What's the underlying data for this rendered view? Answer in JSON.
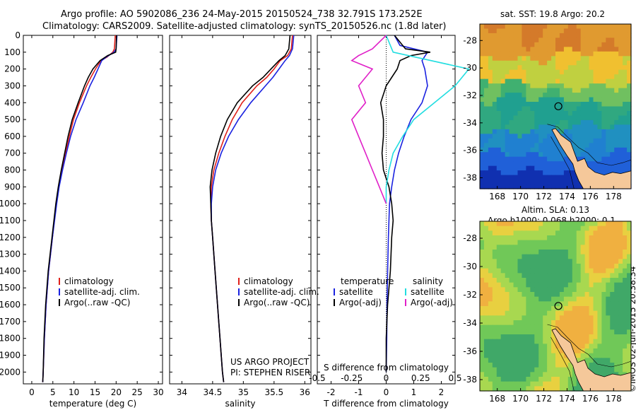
{
  "header": {
    "line1": "Argo profile: AO 5902086_236 24-May-2015 20150524_738 32.791S 173.252E",
    "line2": "Climatology: CARS2009. Satellite-adjusted climatology: synTS_20150526.nc (1.8d later)"
  },
  "side_stamp": "©IMOS 02-Jun-2015 20:38:34",
  "colors": {
    "climatology": "#e0201a",
    "satellite": "#1a22e0",
    "argo": "#000000",
    "cyan": "#22dde0",
    "magenta": "#e020c8"
  },
  "chart_data": [
    {
      "type": "line",
      "xlabel": "temperature (deg C)",
      "ylabel": "",
      "xlim": [
        -2,
        31
      ],
      "ylim": [
        2070,
        0
      ],
      "xticks": [
        "0",
        "5",
        "10",
        "15",
        "20",
        "25",
        "30"
      ],
      "yticks": [
        "0",
        "100",
        "200",
        "300",
        "400",
        "500",
        "600",
        "700",
        "800",
        "900",
        "1000",
        "1100",
        "1200",
        "1300",
        "1400",
        "1500",
        "1600",
        "1700",
        "1800",
        "1900",
        "2000"
      ],
      "legend": [
        "climatology",
        "satellite-adj. clim.",
        "Argo(..raw -QC)"
      ],
      "series": [
        {
          "name": "climatology",
          "color": "#e0201a",
          "depth": [
            0,
            80,
            100,
            130,
            150,
            200,
            250,
            300,
            400,
            500,
            600,
            700,
            800,
            900,
            1000,
            1200,
            1400,
            1600,
            1800,
            2000,
            2060
          ],
          "values": [
            19.8,
            19.6,
            19.2,
            17.8,
            16.4,
            15.1,
            14.0,
            13.0,
            11.3,
            9.9,
            8.9,
            8.0,
            7.2,
            6.4,
            5.8,
            4.9,
            4.0,
            3.4,
            3.0,
            2.7,
            2.6
          ]
        },
        {
          "name": "satellite-adj. clim.",
          "color": "#1a22e0",
          "depth": [
            0,
            80,
            100,
            130,
            150,
            200,
            250,
            300,
            400,
            500,
            600,
            700,
            800,
            900,
            1000,
            1200,
            1400,
            1600,
            1800,
            2000,
            2060
          ],
          "values": [
            20.2,
            20.0,
            19.5,
            17.6,
            16.6,
            15.7,
            14.8,
            13.8,
            12.2,
            10.5,
            9.2,
            8.2,
            7.3,
            6.5,
            5.9,
            4.9,
            4.0,
            3.4,
            3.0,
            2.7,
            2.6
          ]
        },
        {
          "name": "Argo(..raw -QC)",
          "color": "#000000",
          "depth": [
            0,
            80,
            100,
            120,
            150,
            200,
            250,
            300,
            400,
            500,
            600,
            700,
            800,
            900,
            1000,
            1200,
            1400,
            1600,
            1800,
            2000,
            2060
          ],
          "values": [
            20.1,
            20.0,
            19.9,
            18.0,
            16.2,
            14.5,
            13.4,
            12.5,
            11.0,
            9.6,
            8.6,
            7.8,
            7.0,
            6.3,
            5.7,
            4.8,
            3.9,
            3.3,
            2.9,
            2.7,
            2.6
          ]
        }
      ],
      "annotation": []
    },
    {
      "type": "line",
      "xlabel": "salinity",
      "xlim": [
        33.8,
        36.1
      ],
      "ylim": [
        2070,
        0
      ],
      "xticks": [
        "34",
        "34.5",
        "35",
        "35.5",
        "36"
      ],
      "legend": [
        "climatology",
        "satellite-adj. clim.",
        "Argo(..raw -QC)"
      ],
      "series": [
        {
          "name": "climatology",
          "color": "#e0201a",
          "depth": [
            0,
            80,
            120,
            150,
            200,
            250,
            300,
            400,
            500,
            600,
            700,
            800,
            900,
            1000,
            1100,
            1200,
            1400,
            1600,
            1800,
            2000,
            2060
          ],
          "values": [
            35.8,
            35.78,
            35.72,
            35.6,
            35.5,
            35.38,
            35.22,
            34.98,
            34.82,
            34.7,
            34.6,
            34.52,
            34.48,
            34.47,
            34.48,
            34.5,
            34.54,
            34.58,
            34.62,
            34.66,
            34.68
          ]
        },
        {
          "name": "satellite-adj. clim.",
          "color": "#1a22e0",
          "depth": [
            0,
            80,
            120,
            150,
            200,
            250,
            300,
            400,
            500,
            600,
            700,
            800,
            900,
            1000,
            1100,
            1200,
            1400,
            1600,
            1800,
            2000,
            2060
          ],
          "values": [
            35.82,
            35.8,
            35.75,
            35.68,
            35.58,
            35.48,
            35.36,
            35.12,
            34.92,
            34.76,
            34.64,
            34.55,
            34.5,
            34.48,
            34.48,
            34.5,
            34.54,
            34.58,
            34.62,
            34.66,
            34.68
          ]
        },
        {
          "name": "Argo(..raw -QC)",
          "color": "#000000",
          "depth": [
            0,
            80,
            120,
            150,
            200,
            250,
            300,
            400,
            500,
            600,
            700,
            800,
            900,
            1000,
            1100,
            1200,
            1400,
            1600,
            1800,
            2000,
            2060
          ],
          "values": [
            35.76,
            35.74,
            35.68,
            35.58,
            35.45,
            35.32,
            35.15,
            34.9,
            34.74,
            34.63,
            34.55,
            34.49,
            34.46,
            34.47,
            34.48,
            34.5,
            34.54,
            34.58,
            34.62,
            34.66,
            34.68
          ]
        }
      ],
      "annotation": [
        "US ARGO PROJECT",
        "PI: STEPHEN RISER"
      ]
    },
    {
      "type": "line",
      "xlabel": "T difference from climatology",
      "xlabel_top": "S difference from climatology",
      "xlim": [
        -2.5,
        2.5
      ],
      "ylim": [
        2070,
        0
      ],
      "xticks": [
        "-2",
        "-1",
        "0",
        "1",
        "2"
      ],
      "xticks_top": [
        "-0.5",
        "-0.25",
        "0",
        "0.25",
        "0.5"
      ],
      "legend_headers": [
        "temperature",
        "salinity"
      ],
      "legend": [
        "satellite",
        "Argo(-adj)",
        "satellite",
        "Argo(-adj)"
      ],
      "series": [
        {
          "name": "temperature satellite",
          "color": "#1a22e0",
          "depth": [
            0,
            60,
            100,
            150,
            200,
            300,
            400,
            500,
            600,
            700,
            800,
            900,
            1000,
            1200,
            1400,
            1600,
            1800,
            2000
          ],
          "values": [
            0.3,
            0.5,
            1.5,
            1.3,
            1.4,
            1.5,
            1.3,
            0.9,
            0.65,
            0.45,
            0.3,
            0.2,
            0.12,
            0.08,
            0.05,
            0.03,
            0.02,
            0.0
          ]
        },
        {
          "name": "temperature Argo(-adj)",
          "color": "#000000",
          "depth": [
            0,
            80,
            100,
            120,
            150,
            200,
            250,
            300,
            350,
            400,
            500,
            600,
            700,
            800,
            900,
            1000,
            1100,
            1200,
            1400,
            1600,
            1800,
            2000
          ],
          "values": [
            0.3,
            0.7,
            1.6,
            0.9,
            0.5,
            0.4,
            0.2,
            0.0,
            -0.1,
            -0.2,
            -0.1,
            -0.1,
            -0.15,
            -0.1,
            0.1,
            0.2,
            0.25,
            0.2,
            0.15,
            0.05,
            0.0,
            0.0
          ]
        },
        {
          "name": "salinity satellite",
          "color": "#22dde0",
          "depth": [
            0,
            100,
            200,
            300,
            400,
            500,
            600,
            700,
            800,
            900,
            1000
          ],
          "values": [
            0.0,
            0.05,
            0.6,
            0.5,
            0.35,
            0.2,
            0.12,
            0.05,
            0.02,
            0.0,
            0.0
          ]
        },
        {
          "name": "salinity Argo(-adj)",
          "color": "#e020c8",
          "depth": [
            0,
            80,
            120,
            150,
            200,
            300,
            400,
            500,
            600,
            700,
            800,
            900,
            1000
          ],
          "values": [
            0.0,
            -0.1,
            -0.2,
            -0.25,
            -0.1,
            -0.2,
            -0.15,
            -0.25,
            -0.2,
            -0.15,
            -0.1,
            -0.05,
            0.0
          ]
        }
      ]
    },
    {
      "type": "heatmap",
      "title": "sat. SST: 19.8 Argo: 20.2",
      "xticks": [
        "168",
        "170",
        "172",
        "174",
        "176",
        "178"
      ],
      "yticks": [
        "-28",
        "-30",
        "-32",
        "-34",
        "-36",
        "-38"
      ],
      "xlim": [
        166.5,
        179.5
      ],
      "ylim": [
        -38.8,
        -26.8
      ],
      "argo_position": [
        173.252,
        -32.791
      ]
    },
    {
      "type": "heatmap",
      "title_line1": "Altim. SLA: 0.13",
      "title_line2": "Argo h1000: 0.068 h2000: 0.1",
      "xticks": [
        "168",
        "170",
        "172",
        "174",
        "176",
        "178"
      ],
      "yticks": [
        "-28",
        "-30",
        "-32",
        "-34",
        "-36",
        "-38"
      ],
      "xlim": [
        166.5,
        179.5
      ],
      "ylim": [
        -38.8,
        -26.8
      ],
      "argo_position": [
        173.252,
        -32.791
      ]
    }
  ]
}
